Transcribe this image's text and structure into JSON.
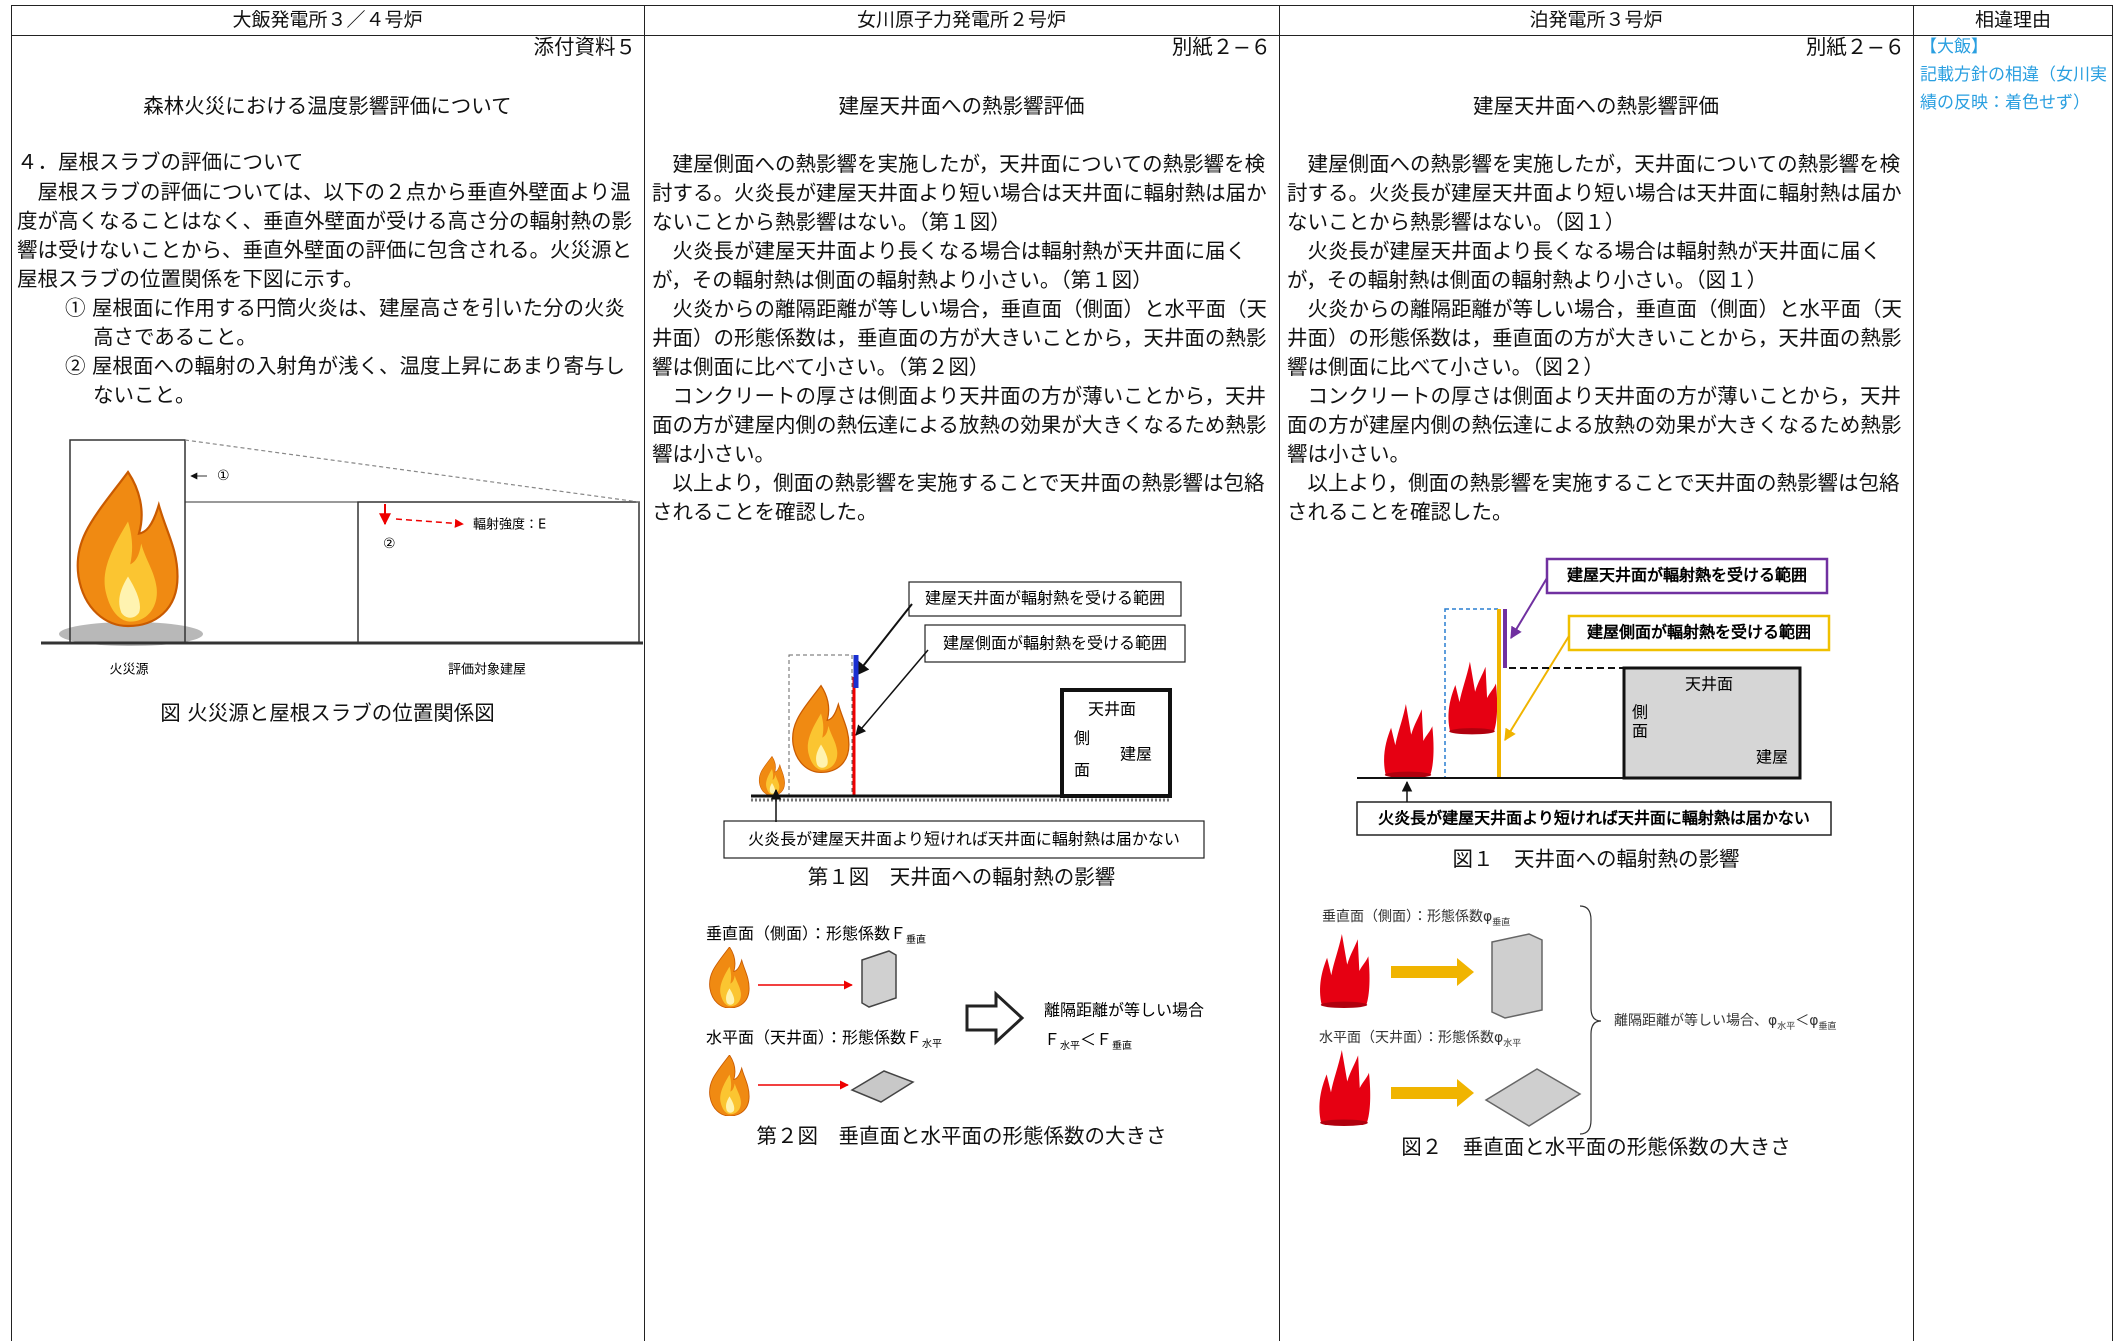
{
  "header": [
    "大飯発電所３／４号炉",
    "女川原子力発電所２号炉",
    "泊発電所３号炉",
    "相違理由"
  ],
  "ohi": {
    "ref": "添付資料５",
    "title": "森林火災における温度影響評価について",
    "heading": "４．屋根スラブの評価について",
    "paragraph": "屋根スラブの評価については、以下の２点から垂直外壁面より温度が高くなることはなく、垂直外壁面が受ける高さ分の輻射熱の影響は受けないことから、垂直外壁面の評価に包含される。火災源と屋根スラブの位置関係を下図に示す。",
    "items": [
      "① 屋根面に作用する円筒火炎は、建屋高さを引いた分の火炎高さであること。",
      "② 屋根面への輻射の入射角が浅く、温度上昇にあまり寄与しないこと。"
    ],
    "figure": {
      "marker1": "①",
      "marker2": "②",
      "intensity": "輻射強度：E",
      "source": "火災源",
      "building": "評価対象建屋",
      "caption": "図 火災源と屋根スラブの位置関係図"
    }
  },
  "onagawa": {
    "ref": "別紙２−６",
    "title": "建屋天井面への熱影響評価",
    "paragraphs": [
      "建屋側面への熱影響を実施したが，天井面についての熱影響を検討する。火炎長が建屋天井面より短い場合は天井面に輻射熱は届かないことから熱影響はない。（第１図）",
      "火炎長が建屋天井面より長くなる場合は輻射熱が天井面に届くが，その輻射熱は側面の輻射熱より小さい。（第１図）",
      "火炎からの離隔距離が等しい場合，垂直面（側面）と水平面（天井面）の形態係数は，垂直面の方が大きいことから，天井面の熱影響は側面に比べて小さい。（第２図）",
      "コンクリートの厚さは側面より天井面の方が薄いことから，天井面の方が建屋内側の熱伝達による放熱の効果が大きくなるため熱影響は小さい。",
      "以上より，側面の熱影響を実施することで天井面の熱影響は包絡されることを確認した。"
    ],
    "figure1": {
      "roof_range": "建屋天井面が輻射熱を受ける範囲",
      "side_range": "建屋側面が輻射熱を受ける範囲",
      "roof": "天井面",
      "side": [
        "側",
        "面"
      ],
      "building": "建屋",
      "note": "火炎長が建屋天井面より短ければ天井面に輻射熱は届かない",
      "caption": "第１図　天井面への輻射熱の影響"
    },
    "figure2": {
      "vertical": [
        "垂直面（側面）：形態係数Ｆ",
        "垂直"
      ],
      "horizontal": [
        "水平面（天井面）：形態係数Ｆ",
        "水平"
      ],
      "equal": "離隔距離が等しい場合",
      "compare": [
        "Ｆ",
        "水平",
        "＜Ｆ",
        "垂直"
      ],
      "caption": "第２図　垂直面と水平面の形態係数の大きさ"
    }
  },
  "tomari": {
    "ref": "別紙２−６",
    "title": "建屋天井面への熱影響評価",
    "paragraphs": [
      "建屋側面への熱影響を実施したが，天井面についての熱影響を検討する。火炎長が建屋天井面より短い場合は天井面に輻射熱は届かないことから熱影響はない。（図１）",
      "火炎長が建屋天井面より長くなる場合は輻射熱が天井面に届くが，その輻射熱は側面の輻射熱より小さい。（図１）",
      "火炎からの離隔距離が等しい場合，垂直面（側面）と水平面（天井面）の形態係数は，垂直面の方が大きいことから，天井面の熱影響は側面に比べて小さい。（図２）",
      "コンクリートの厚さは側面より天井面の方が薄いことから，天井面の方が建屋内側の熱伝達による放熱の効果が大きくなるため熱影響は小さい。",
      "以上より，側面の熱影響を実施することで天井面の熱影響は包絡されることを確認した。"
    ],
    "figure1": {
      "roof_range": "建屋天井面が輻射熱を受ける範囲",
      "side_range": "建屋側面が輻射熱を受ける範囲",
      "roof": "天井面",
      "side": [
        "側",
        "面"
      ],
      "building": "建屋",
      "note": "火炎長が建屋天井面より短ければ天井面に輻射熱は届かない",
      "caption": "図１　天井面への輻射熱の影響"
    },
    "figure2": {
      "vertical": [
        "垂直面（側面）：形態係数φ",
        "垂直"
      ],
      "horizontal": [
        "水平面（天井面）：形態係数φ",
        "水平"
      ],
      "compare": [
        "離隔距離が等しい場合、φ",
        "水平",
        "＜φ",
        "垂直"
      ],
      "caption": "図２　垂直面と水平面の形態係数の大きさ"
    }
  },
  "reason": {
    "tag": "【大飯】",
    "text": "記載方針の相違（女川実績の反映：着色せず）"
  }
}
